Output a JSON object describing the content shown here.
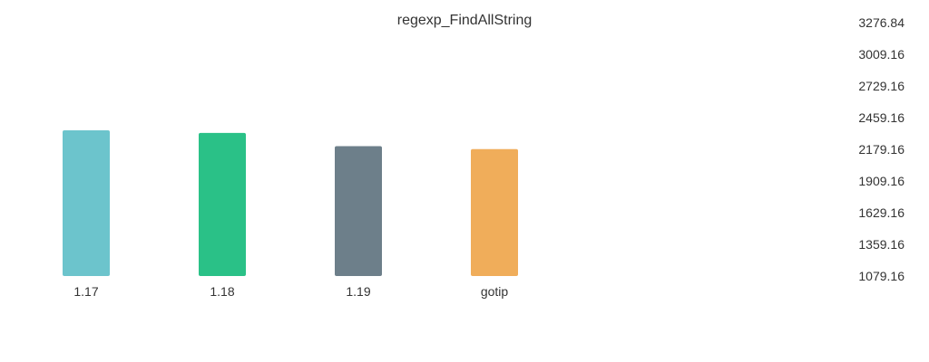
{
  "chart_data": {
    "type": "bar",
    "title": "regexp_FindAllString",
    "xlabel": "",
    "ylabel": "",
    "categories": [
      "1.17",
      "1.18",
      "1.19",
      "gotip"
    ],
    "values": [
      2343,
      2320,
      2205,
      2180
    ],
    "colors": [
      "#6cc4cc",
      "#2ac187",
      "#6d7f8a",
      "#f0ad5a"
    ],
    "y_ticks": [
      "3276.84",
      "3009.16",
      "2729.16",
      "2459.16",
      "2179.16",
      "1909.16",
      "1629.16",
      "1359.16",
      "1079.16"
    ],
    "ylim": [
      1079.16,
      3276.84
    ],
    "grid": false,
    "legend": "none",
    "y_axis_position": "right"
  }
}
